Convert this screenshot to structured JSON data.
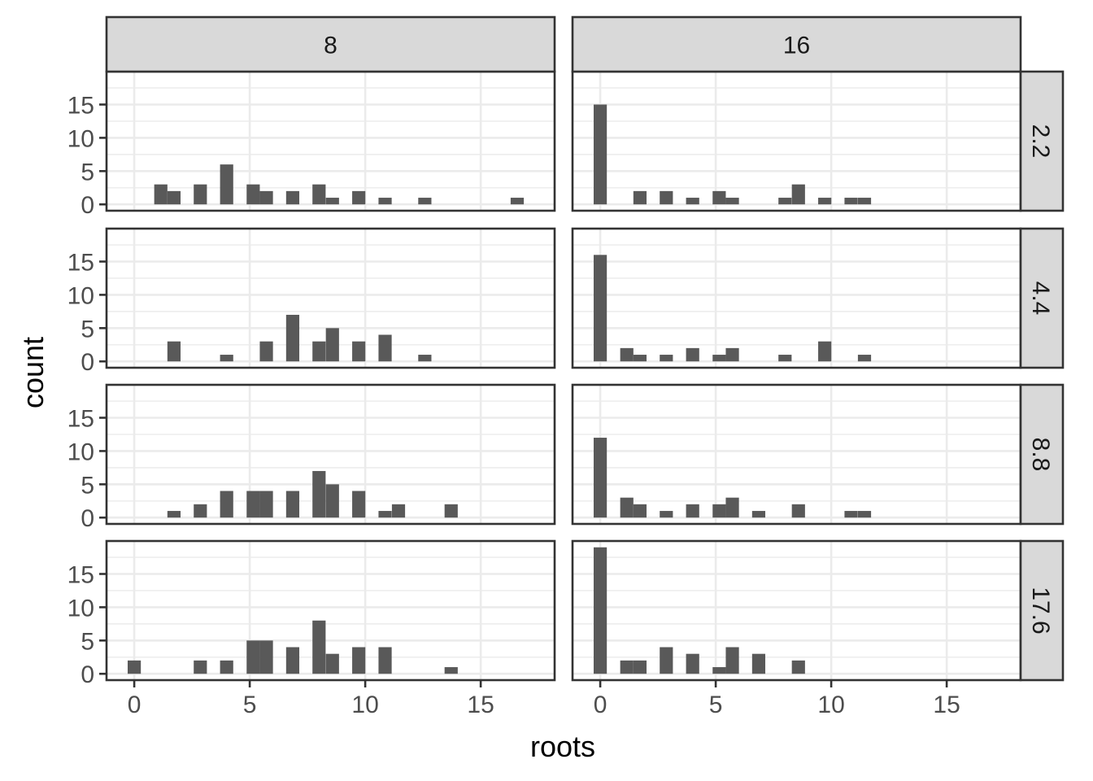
{
  "chart_data": {
    "type": "bar",
    "subtype": "histogram, faceted grid",
    "xlabel": "roots",
    "ylabel": "count",
    "xlim": [
      -1.2,
      18.2
    ],
    "ylim": [
      -0.95,
      19.95
    ],
    "x_ticks": [
      0,
      5,
      10,
      15
    ],
    "y_ticks": [
      0,
      5,
      10,
      15
    ],
    "bin_width": 0.57,
    "grid": true,
    "col_strips": [
      "8",
      "16"
    ],
    "row_strips": [
      "2.2",
      "4.4",
      "8.8",
      "17.6"
    ],
    "colors": {
      "bar": "#595959",
      "strip": "#d9d9d9",
      "border": "#333333",
      "grid": "#ebebeb",
      "axis_text": "#4d4d4d",
      "title_text": "#000000"
    },
    "panels": [
      {
        "col": "8",
        "row": "2.2",
        "bins": [
          [
            1.15,
            3
          ],
          [
            1.72,
            2
          ],
          [
            2.86,
            3
          ],
          [
            4.0,
            6
          ],
          [
            5.15,
            3
          ],
          [
            5.72,
            2
          ],
          [
            6.86,
            2
          ],
          [
            8.0,
            3
          ],
          [
            8.58,
            1
          ],
          [
            9.72,
            2
          ],
          [
            10.86,
            1
          ],
          [
            12.58,
            1
          ],
          [
            16.58,
            1
          ]
        ]
      },
      {
        "col": "16",
        "row": "2.2",
        "bins": [
          [
            0,
            15
          ],
          [
            1.72,
            2
          ],
          [
            2.86,
            2
          ],
          [
            4.0,
            1
          ],
          [
            5.15,
            2
          ],
          [
            5.72,
            1
          ],
          [
            8.0,
            1
          ],
          [
            8.58,
            3
          ],
          [
            9.72,
            1
          ],
          [
            10.86,
            1
          ],
          [
            11.44,
            1
          ]
        ]
      },
      {
        "col": "8",
        "row": "4.4",
        "bins": [
          [
            1.72,
            3
          ],
          [
            4.0,
            1
          ],
          [
            5.72,
            3
          ],
          [
            6.86,
            7
          ],
          [
            8.0,
            3
          ],
          [
            8.58,
            5
          ],
          [
            9.72,
            3
          ],
          [
            10.86,
            4
          ],
          [
            12.58,
            1
          ]
        ]
      },
      {
        "col": "16",
        "row": "4.4",
        "bins": [
          [
            0,
            16
          ],
          [
            1.15,
            2
          ],
          [
            1.72,
            1
          ],
          [
            2.86,
            1
          ],
          [
            4.0,
            2
          ],
          [
            5.15,
            1
          ],
          [
            5.72,
            2
          ],
          [
            8.0,
            1
          ],
          [
            9.72,
            3
          ],
          [
            11.44,
            1
          ]
        ]
      },
      {
        "col": "8",
        "row": "8.8",
        "bins": [
          [
            1.72,
            1
          ],
          [
            2.86,
            2
          ],
          [
            4.0,
            4
          ],
          [
            5.15,
            4
          ],
          [
            5.72,
            4
          ],
          [
            6.86,
            4
          ],
          [
            8.0,
            7
          ],
          [
            8.58,
            5
          ],
          [
            9.72,
            4
          ],
          [
            10.86,
            1
          ],
          [
            11.44,
            2
          ],
          [
            13.72,
            2
          ]
        ]
      },
      {
        "col": "16",
        "row": "8.8",
        "bins": [
          [
            0,
            12
          ],
          [
            1.15,
            3
          ],
          [
            1.72,
            2
          ],
          [
            2.86,
            1
          ],
          [
            4.0,
            2
          ],
          [
            5.15,
            2
          ],
          [
            5.72,
            3
          ],
          [
            6.86,
            1
          ],
          [
            8.58,
            2
          ],
          [
            10.86,
            1
          ],
          [
            11.44,
            1
          ]
        ]
      },
      {
        "col": "8",
        "row": "17.6",
        "bins": [
          [
            0,
            2
          ],
          [
            2.86,
            2
          ],
          [
            4.0,
            2
          ],
          [
            5.15,
            5
          ],
          [
            5.72,
            5
          ],
          [
            6.86,
            4
          ],
          [
            8.0,
            8
          ],
          [
            8.58,
            3
          ],
          [
            9.72,
            4
          ],
          [
            10.86,
            4
          ],
          [
            13.72,
            1
          ]
        ]
      },
      {
        "col": "16",
        "row": "17.6",
        "bins": [
          [
            0,
            19
          ],
          [
            1.15,
            2
          ],
          [
            1.72,
            2
          ],
          [
            2.86,
            4
          ],
          [
            4.0,
            3
          ],
          [
            5.15,
            1
          ],
          [
            5.72,
            4
          ],
          [
            6.86,
            3
          ],
          [
            8.58,
            2
          ]
        ]
      }
    ]
  }
}
